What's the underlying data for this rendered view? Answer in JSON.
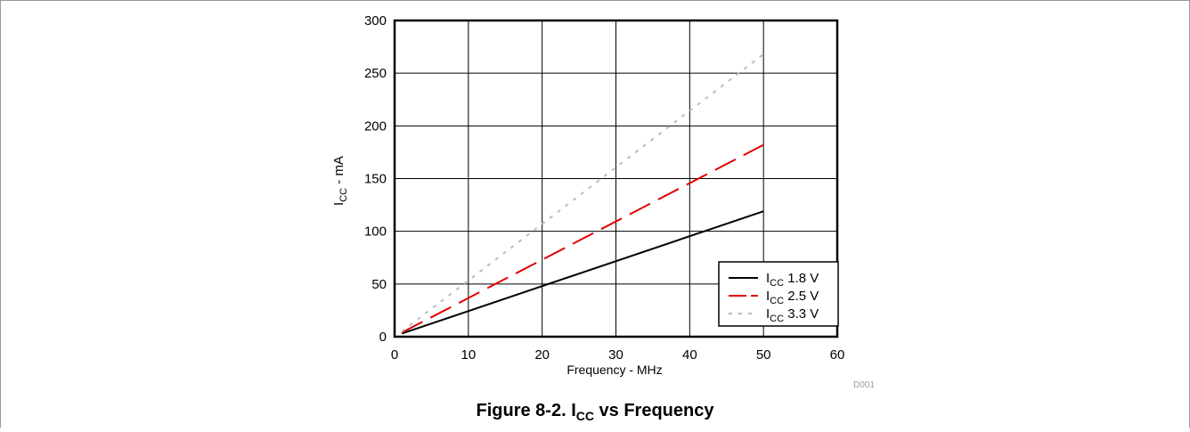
{
  "figure": {
    "caption_prefix": "Figure 8-2. I",
    "caption_sub": "CC",
    "caption_suffix": " vs Frequency",
    "code": "D001"
  },
  "chart_data": {
    "type": "line",
    "xlabel": "Frequency - MHz",
    "ylabel_main": "I",
    "ylabel_sub": "CC",
    "ylabel_suffix": " - mA",
    "xlim": [
      0,
      60
    ],
    "ylim": [
      0,
      300
    ],
    "xticks": [
      0,
      10,
      20,
      30,
      40,
      50,
      60
    ],
    "yticks": [
      0,
      50,
      100,
      150,
      200,
      250,
      300
    ],
    "grid": true,
    "legend_position": "bottom-right",
    "series": [
      {
        "label_main": "I",
        "label_sub": "CC",
        "label_suffix": " 1.8 V",
        "color": "#000000",
        "dash": "solid",
        "x": [
          1,
          50
        ],
        "y": [
          3,
          119
        ]
      },
      {
        "label_main": "I",
        "label_sub": "CC",
        "label_suffix": " 2.5 V",
        "color": "#e00000",
        "dash": "long-dash",
        "x": [
          1,
          50
        ],
        "y": [
          4,
          182
        ]
      },
      {
        "label_main": "I",
        "label_sub": "CC",
        "label_suffix": " 3.3 V",
        "color": "#bcbcbc",
        "dash": "dotted",
        "x": [
          1,
          50
        ],
        "y": [
          5,
          268
        ]
      }
    ]
  }
}
